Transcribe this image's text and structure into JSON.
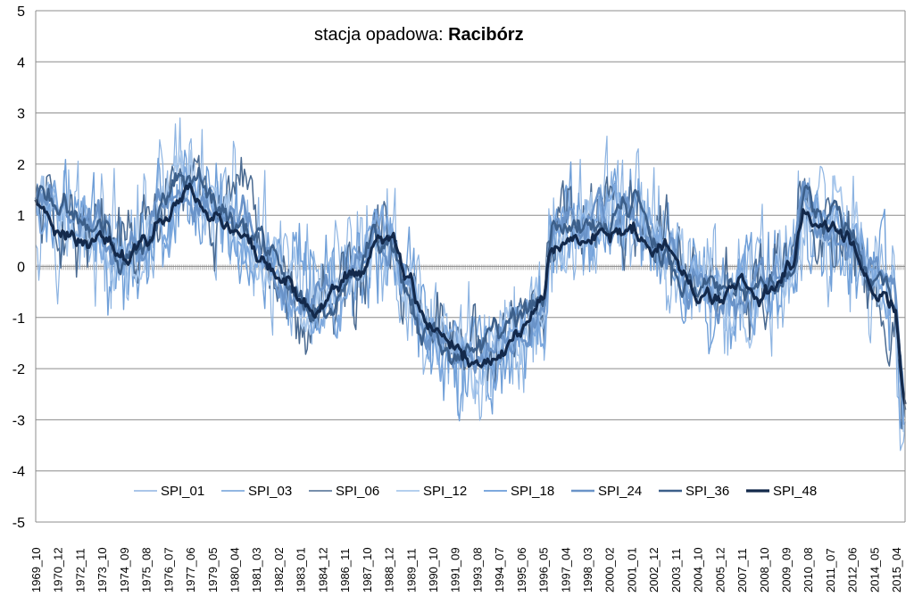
{
  "chart_data": {
    "type": "line",
    "title_prefix": "stacja opadowa: ",
    "title_station": "Racibórz",
    "xlabel": "",
    "ylabel": "",
    "ylim": [
      -5,
      5
    ],
    "yticks": [
      -5,
      -4,
      -3,
      -2,
      -1,
      0,
      1,
      2,
      3,
      4,
      5
    ],
    "grid": true,
    "legend_position": "bottom-center",
    "x_tick_labels": [
      "1969_10",
      "1970_12",
      "1972_11",
      "1973_10",
      "1974_09",
      "1975_08",
      "1976_07",
      "1977_06",
      "1979_05",
      "1980_04",
      "1981_03",
      "1982_02",
      "1983_01",
      "1984_12",
      "1986_11",
      "1987_10",
      "1988_12",
      "1989_11",
      "1990_10",
      "1991_09",
      "1993_08",
      "1994_07",
      "1995_06",
      "1996_05",
      "1997_04",
      "1998_03",
      "2000_02",
      "2001_01",
      "2002_12",
      "2003_11",
      "2004_10",
      "2005_12",
      "2007_11",
      "2008_10",
      "2009_09",
      "2010_08",
      "2011_07",
      "2012_06",
      "2014_05",
      "2015_04"
    ],
    "x_start": "1969-10",
    "x_end": "2015-12",
    "series": [
      {
        "name": "SPI_01",
        "color": "#8db4e2",
        "width": 1.2,
        "jitter": 1.0
      },
      {
        "name": "SPI_03",
        "color": "#6f9fd8",
        "width": 1.4,
        "jitter": 0.75
      },
      {
        "name": "SPI_06",
        "color": "#4a6a91",
        "width": 1.5,
        "jitter": 0.55
      },
      {
        "name": "SPI_12",
        "color": "#a9c8ec",
        "width": 1.8,
        "jitter": 0.4
      },
      {
        "name": "SPI_18",
        "color": "#7ea9de",
        "width": 2.0,
        "jitter": 0.3
      },
      {
        "name": "SPI_24",
        "color": "#6a93c8",
        "width": 2.6,
        "jitter": 0.22
      },
      {
        "name": "SPI_36",
        "color": "#3c5f8a",
        "width": 2.6,
        "jitter": 0.16
      },
      {
        "name": "SPI_48",
        "color": "#13294b",
        "width": 3.2,
        "jitter": 0.1
      }
    ],
    "trend_points": [
      [
        "1969-10",
        1.3
      ],
      [
        "1971-06",
        1.0
      ],
      [
        "1972-12",
        0.6
      ],
      [
        "1974-03",
        0.3
      ],
      [
        "1975-06",
        0.5
      ],
      [
        "1976-09",
        1.1
      ],
      [
        "1977-09",
        1.6
      ],
      [
        "1979-06",
        1.1
      ],
      [
        "1980-09",
        0.7
      ],
      [
        "1981-09",
        0.2
      ],
      [
        "1982-12",
        -0.3
      ],
      [
        "1984-01",
        -0.7
      ],
      [
        "1985-06",
        -0.6
      ],
      [
        "1986-10",
        -0.2
      ],
      [
        "1987-10",
        0.2
      ],
      [
        "1988-09",
        0.3
      ],
      [
        "1989-06",
        -0.5
      ],
      [
        "1990-09",
        -1.3
      ],
      [
        "1992-03",
        -1.7
      ],
      [
        "1993-09",
        -1.8
      ],
      [
        "1995-03",
        -1.4
      ],
      [
        "1996-09",
        -0.8
      ],
      [
        "1997-03",
        0.5
      ],
      [
        "1998-06",
        0.8
      ],
      [
        "2000-06",
        0.9
      ],
      [
        "2001-06",
        1.0
      ],
      [
        "2002-12",
        0.4
      ],
      [
        "2004-09",
        -0.3
      ],
      [
        "2006-06",
        -0.6
      ],
      [
        "2008-06",
        -0.5
      ],
      [
        "2009-12",
        0.0
      ],
      [
        "2010-08",
        1.1
      ],
      [
        "2011-09",
        0.7
      ],
      [
        "2012-09",
        0.6
      ],
      [
        "2014-06",
        -0.3
      ],
      [
        "2015-04",
        -0.8
      ],
      [
        "2015-12",
        -1.5
      ]
    ]
  }
}
